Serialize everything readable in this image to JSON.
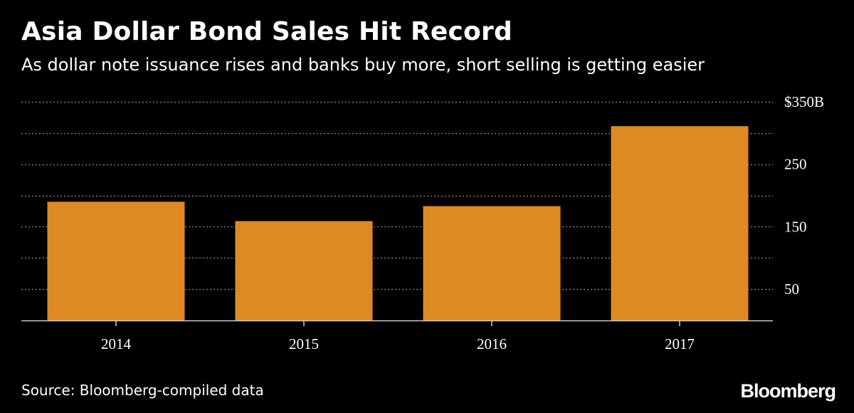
{
  "chart_data": {
    "type": "bar",
    "title": "Asia Dollar Bond Sales Hit Record",
    "subtitle": "As dollar note issuance rises and banks buy more, short selling is getting easier",
    "categories": [
      "2014",
      "2015",
      "2016",
      "2017"
    ],
    "values": [
      190,
      159,
      183,
      311
    ],
    "ylim": [
      0,
      350
    ],
    "yticks": [
      50,
      150,
      250,
      350
    ],
    "ytick_labels": [
      "50",
      "150",
      "250",
      "$350B"
    ],
    "gridlines": [
      50,
      100,
      150,
      200,
      250,
      300,
      350
    ],
    "grid": true,
    "y_axis_position": "right",
    "bar_color": "#de8a22",
    "grid_color": "#7a7a7a",
    "source": "Source: Bloomberg-compiled data"
  },
  "brand": "Bloomberg"
}
